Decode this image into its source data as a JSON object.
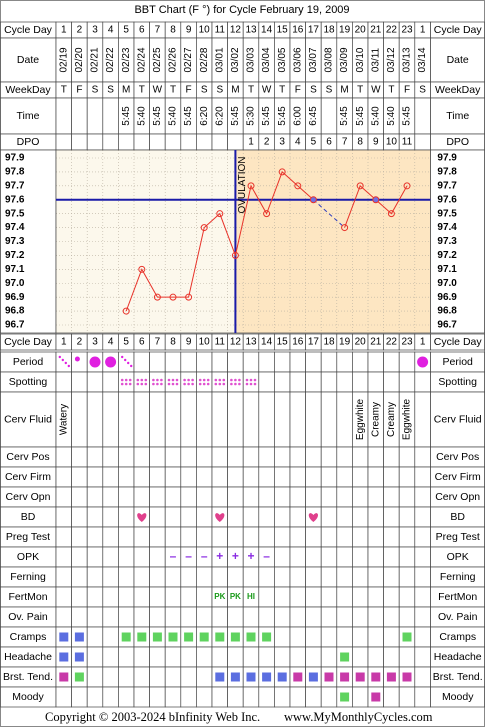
{
  "title": "BBT Chart (F °) for Cycle February 19, 2009",
  "labels": {
    "cycle_day": "Cycle Day",
    "date": "Date",
    "weekday": "WeekDay",
    "time": "Time",
    "dpo": "DPO"
  },
  "dates": [
    "02/19",
    "02/20",
    "02/21",
    "02/22",
    "02/23",
    "02/24",
    "02/25",
    "02/26",
    "02/27",
    "02/28",
    "03/01",
    "03/02",
    "03/03",
    "03/04",
    "03/05",
    "03/06",
    "03/07",
    "03/08",
    "03/09",
    "03/10",
    "03/11",
    "03/12",
    "03/13",
    "03/14"
  ],
  "weekdays": [
    "T",
    "F",
    "S",
    "S",
    "M",
    "T",
    "W",
    "T",
    "F",
    "S",
    "S",
    "M",
    "T",
    "W",
    "T",
    "F",
    "S",
    "S",
    "M",
    "T",
    "W",
    "T",
    "F",
    "S"
  ],
  "times": [
    null,
    null,
    null,
    null,
    "5:45",
    "5:40",
    "5:45",
    "5:40",
    "5:45",
    "6:20",
    "6:20",
    "5:45",
    "5:30",
    "5:45",
    "5:45",
    "6:00",
    "6:45",
    null,
    "5:45",
    "5:45",
    "5:40",
    "5:40",
    "5:45",
    null
  ],
  "dpo": [
    null,
    null,
    null,
    null,
    null,
    null,
    null,
    null,
    null,
    null,
    null,
    null,
    1,
    2,
    3,
    4,
    5,
    6,
    7,
    8,
    9,
    10,
    11,
    null
  ],
  "chart_data": {
    "type": "line",
    "categories": [
      1,
      2,
      3,
      4,
      5,
      6,
      7,
      8,
      9,
      10,
      11,
      12,
      13,
      14,
      15,
      16,
      17,
      18,
      19,
      20,
      21,
      22,
      23,
      1
    ],
    "series": [
      {
        "color": "#e8332a",
        "values": [
          null,
          null,
          null,
          null,
          96.8,
          97.1,
          96.9,
          96.9,
          96.9,
          97.4,
          97.5,
          97.2,
          97.7,
          97.5,
          97.8,
          97.7,
          97.6,
          null,
          97.4,
          97.7,
          97.6,
          97.5,
          97.7,
          null
        ]
      }
    ],
    "ylim": [
      96.7,
      97.9
    ],
    "yticks": [
      96.7,
      96.8,
      96.9,
      {
        "value": 97,
        "label": "97.0"
      },
      97.1,
      97.2,
      97.3,
      97.4,
      97.5,
      97.6,
      97.7,
      97.8,
      97.9
    ],
    "grid": true,
    "coverline": 97.6,
    "coverline_color": "#1a1aa8",
    "ovulation_index": 11,
    "ovulation_label": "OVULATION"
  },
  "symptoms": [
    {
      "label": "Period",
      "kind": "period",
      "values": [
        1,
        2,
        3,
        3,
        1,
        null,
        null,
        null,
        null,
        null,
        null,
        null,
        null,
        null,
        null,
        null,
        null,
        null,
        null,
        null,
        null,
        null,
        null,
        3
      ]
    },
    {
      "label": "Spotting",
      "kind": "spotting",
      "values": [
        null,
        null,
        null,
        null,
        1,
        1,
        1,
        1,
        1,
        1,
        1,
        1,
        1,
        null,
        null,
        null,
        null,
        null,
        null,
        null,
        null,
        null,
        null,
        null
      ]
    },
    {
      "label": "Cerv Fluid",
      "kind": "fluid",
      "values": [
        "Watery",
        null,
        null,
        null,
        null,
        null,
        null,
        null,
        null,
        null,
        null,
        null,
        null,
        null,
        null,
        null,
        null,
        null,
        null,
        "Eggwhite",
        "Creamy",
        "Creamy",
        "Eggwhite",
        null
      ]
    },
    {
      "label": "Cerv Pos"
    },
    {
      "label": "Cerv Firm"
    },
    {
      "label": "Cerv Opn"
    },
    {
      "label": "BD",
      "kind": "heart",
      "values": [
        null,
        null,
        null,
        null,
        null,
        true,
        null,
        null,
        null,
        null,
        true,
        null,
        null,
        null,
        null,
        null,
        true,
        null,
        null,
        null,
        null,
        null,
        null,
        null
      ]
    },
    {
      "label": "Preg Test"
    },
    {
      "label": "OPK",
      "kind": "opk",
      "values": [
        null,
        null,
        null,
        null,
        null,
        null,
        null,
        "–",
        "–",
        "–",
        "+",
        "+",
        "+",
        "–",
        null,
        null,
        null,
        null,
        null,
        null,
        null,
        null,
        null,
        null
      ]
    },
    {
      "label": "Ferning"
    },
    {
      "label": "FertMon",
      "kind": "fertmon",
      "values": [
        null,
        null,
        null,
        null,
        null,
        null,
        null,
        null,
        null,
        null,
        "PK",
        "PK",
        "HI",
        null,
        null,
        null,
        null,
        null,
        null,
        null,
        null,
        null,
        null,
        null
      ]
    },
    {
      "label": "Ov. Pain"
    },
    {
      "label": "Cramps",
      "kind": "square",
      "values": [
        1,
        1,
        null,
        null,
        2,
        2,
        2,
        2,
        2,
        2,
        2,
        2,
        2,
        2,
        null,
        null,
        null,
        null,
        null,
        null,
        null,
        null,
        2,
        null
      ]
    },
    {
      "label": "Headache",
      "kind": "square",
      "values": [
        1,
        1,
        null,
        null,
        null,
        null,
        null,
        null,
        null,
        null,
        null,
        null,
        null,
        null,
        null,
        null,
        null,
        null,
        2,
        null,
        null,
        null,
        null,
        null
      ]
    },
    {
      "label": "Brst. Tend.",
      "kind": "square",
      "values": [
        3,
        2,
        null,
        null,
        null,
        null,
        null,
        null,
        null,
        null,
        1,
        1,
        1,
        1,
        1,
        3,
        1,
        3,
        3,
        3,
        3,
        3,
        3,
        null
      ]
    },
    {
      "label": "Moody",
      "kind": "square",
      "values": [
        null,
        null,
        null,
        null,
        null,
        null,
        null,
        null,
        null,
        null,
        null,
        null,
        null,
        null,
        null,
        null,
        null,
        null,
        2,
        null,
        3,
        null,
        null,
        null
      ]
    }
  ],
  "level_colors": {
    "1": "#5b6ee0",
    "2": "#5fd35f",
    "3": "#c83aa8"
  },
  "period_color": "#e020e0",
  "copyright": "Copyright © 2003-2024 bInfinity Web Inc.",
  "site": "www.MyMonthlyCycles.com"
}
